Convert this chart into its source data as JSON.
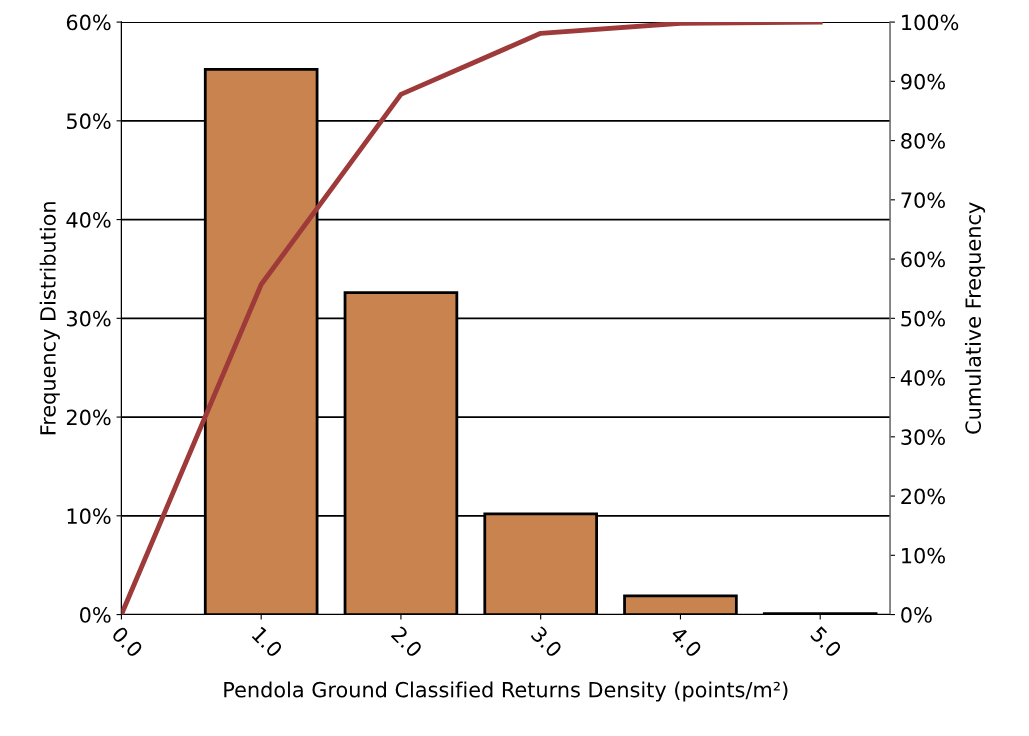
{
  "chart_data": {
    "type": "bar",
    "xlabel": "Pendola Ground Classified Returns Density (points/m²)",
    "ylabel": "Frequency Distribution",
    "y2label": "Cumulative Frequency",
    "xlim": [
      0,
      5.5
    ],
    "xticks": [
      {
        "value": 0,
        "label": "0.0"
      },
      {
        "value": 1,
        "label": "1.0"
      },
      {
        "value": 2,
        "label": "2.0"
      },
      {
        "value": 3,
        "label": "3.0"
      },
      {
        "value": 4,
        "label": "4.0"
      },
      {
        "value": 5,
        "label": "5.0"
      }
    ],
    "ylim": [
      0,
      60
    ],
    "yticks": [
      {
        "value": 0,
        "label": "0%"
      },
      {
        "value": 10,
        "label": "10%"
      },
      {
        "value": 20,
        "label": "20%"
      },
      {
        "value": 30,
        "label": "30%"
      },
      {
        "value": 40,
        "label": "40%"
      },
      {
        "value": 50,
        "label": "50%"
      },
      {
        "value": 60,
        "label": "60%"
      }
    ],
    "y2lim": [
      0,
      100
    ],
    "y2ticks": [
      {
        "value": 0,
        "label": "0%"
      },
      {
        "value": 10,
        "label": "10%"
      },
      {
        "value": 20,
        "label": "20%"
      },
      {
        "value": 30,
        "label": "30%"
      },
      {
        "value": 40,
        "label": "40%"
      },
      {
        "value": 50,
        "label": "50%"
      },
      {
        "value": 60,
        "label": "60%"
      },
      {
        "value": 70,
        "label": "70%"
      },
      {
        "value": 80,
        "label": "80%"
      },
      {
        "value": 90,
        "label": "90%"
      },
      {
        "value": 100,
        "label": "100%"
      }
    ],
    "grid": "y",
    "series": [
      {
        "color": "#c8834f",
        "x": [
          1,
          2,
          3,
          4,
          5
        ],
        "values": [
          55.2,
          32.6,
          10.2,
          1.9,
          0.1
        ]
      },
      {
        "type": "line",
        "axis": "y2",
        "color": "#9e3a3a",
        "x": [
          0,
          1,
          2,
          3,
          4,
          5
        ],
        "values": [
          0,
          55.7,
          87.8,
          98.1,
          99.8,
          100
        ]
      }
    ]
  }
}
